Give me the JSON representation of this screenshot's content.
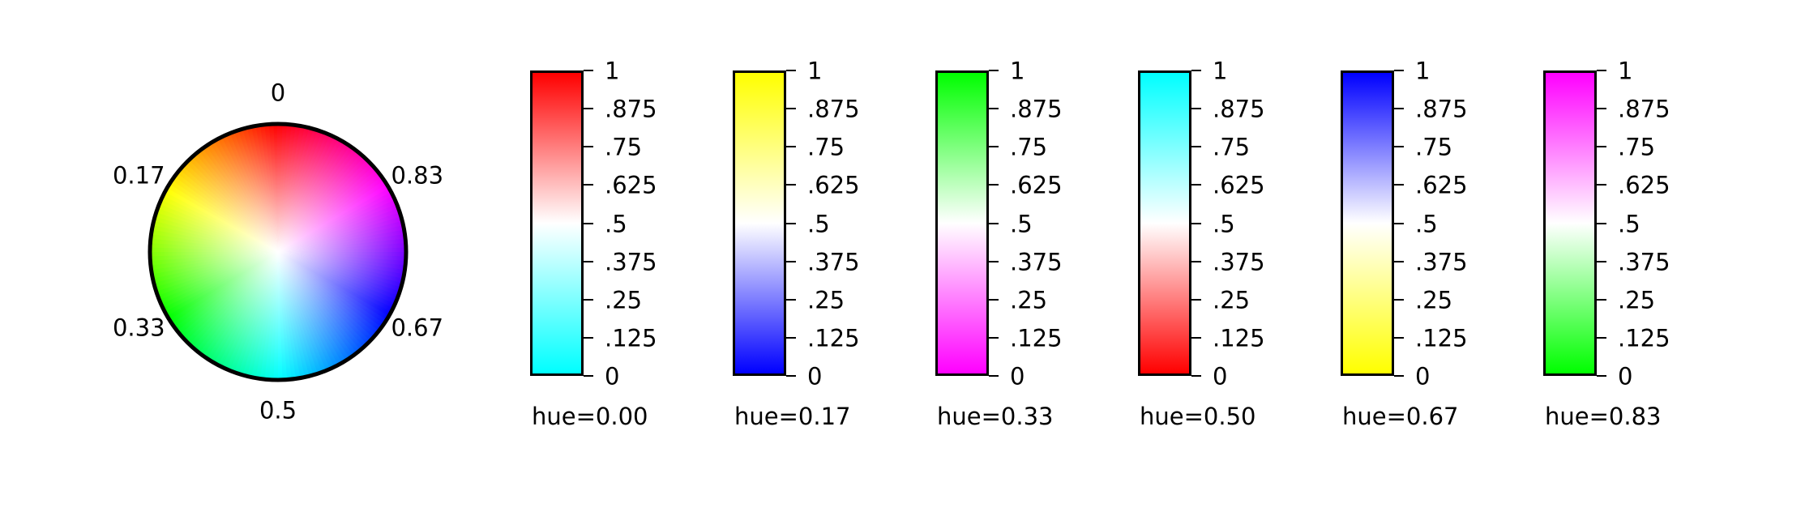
{
  "chart_data": [
    {
      "type": "pie",
      "name": "hue-wheel",
      "labels": [
        "0",
        "0.17",
        "0.33",
        "0.5",
        "0.67",
        "0.83"
      ],
      "hues": [
        0,
        0.17,
        0.33,
        0.5,
        0.67,
        0.83
      ]
    },
    {
      "type": "heatmap",
      "name": "hue-colorbars",
      "tick_labels": [
        "1",
        ".875",
        ".75",
        ".625",
        ".5",
        ".375",
        ".25",
        ".125",
        "0"
      ],
      "tick_values": [
        1,
        0.875,
        0.75,
        0.625,
        0.5,
        0.375,
        0.25,
        0.125,
        0
      ],
      "ylim": [
        0,
        1
      ],
      "bars": [
        {
          "title": "hue=0.00",
          "hue": 0.0,
          "top_color": "#ff0000",
          "bottom_color": "#00ffff"
        },
        {
          "title": "hue=0.17",
          "hue": 0.17,
          "top_color": "#ffff00",
          "bottom_color": "#0000ff"
        },
        {
          "title": "hue=0.33",
          "hue": 0.33,
          "top_color": "#00ff00",
          "bottom_color": "#ff00ff"
        },
        {
          "title": "hue=0.50",
          "hue": 0.5,
          "top_color": "#00ffff",
          "bottom_color": "#ff0000"
        },
        {
          "title": "hue=0.67",
          "hue": 0.67,
          "top_color": "#0000ff",
          "bottom_color": "#ffff00"
        },
        {
          "title": "hue=0.83",
          "hue": 0.83,
          "top_color": "#ff00ff",
          "bottom_color": "#00ff00"
        }
      ]
    }
  ]
}
